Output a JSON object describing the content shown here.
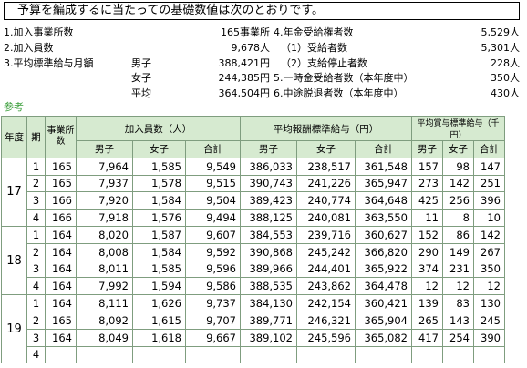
{
  "title": "予算を編成するに当たっての基礎数値は次のとおりです。",
  "summary": {
    "left": [
      {
        "label": "1.加入事業所数",
        "value": "165事業所"
      },
      {
        "label": "2.加入員数",
        "value": "9,678人"
      },
      {
        "label": "3.平均標準給与月額",
        "sub": "男子",
        "value": "388,421円"
      },
      {
        "label": "",
        "sub": "女子",
        "value": "244,385円"
      },
      {
        "label": "",
        "sub": "平均",
        "value": "364,504円"
      },
      {
        "label": "",
        "sub": "",
        "value": ""
      }
    ],
    "right": [
      {
        "label": "4.年金受給権者数",
        "value": "5,529人"
      },
      {
        "label": "（1）受給者数",
        "value": "5,301人"
      },
      {
        "label": "（2）支給停止者数",
        "value": "228人"
      },
      {
        "label": "5.一時金受給者数（本年度中）",
        "value": "350人"
      },
      {
        "label": "6.中途脱退者数（本年度中）",
        "value": "430人"
      }
    ]
  },
  "sankou": "参考",
  "table": {
    "headers": {
      "year": "年度",
      "period": "期",
      "offices": "事業所数",
      "members": "加入員数（人）",
      "salary": "平均報酬標準給与（円）",
      "bonus": "平均賞与標準給与（千円）",
      "male": "男子",
      "female": "女子",
      "total": "合計"
    },
    "groups": [
      {
        "year": "17",
        "rows": [
          [
            "1",
            "165",
            "7,964",
            "1,585",
            "9,549",
            "386,033",
            "238,517",
            "361,548",
            "157",
            "98",
            "147"
          ],
          [
            "2",
            "165",
            "7,937",
            "1,578",
            "9,515",
            "390,743",
            "241,226",
            "365,947",
            "273",
            "142",
            "251"
          ],
          [
            "3",
            "166",
            "7,920",
            "1,584",
            "9,504",
            "389,423",
            "240,774",
            "364,648",
            "425",
            "256",
            "396"
          ],
          [
            "4",
            "166",
            "7,918",
            "1,576",
            "9,494",
            "388,125",
            "240,081",
            "363,550",
            "11",
            "8",
            "10"
          ]
        ]
      },
      {
        "year": "18",
        "rows": [
          [
            "1",
            "164",
            "8,020",
            "1,587",
            "9,607",
            "384,553",
            "239,716",
            "360,627",
            "152",
            "86",
            "142"
          ],
          [
            "2",
            "164",
            "8,008",
            "1,584",
            "9,592",
            "390,868",
            "245,242",
            "366,820",
            "290",
            "149",
            "267"
          ],
          [
            "3",
            "164",
            "8,011",
            "1,585",
            "9,596",
            "389,966",
            "244,401",
            "365,922",
            "374",
            "231",
            "350"
          ],
          [
            "4",
            "164",
            "7,992",
            "1,594",
            "9,586",
            "388,535",
            "243,862",
            "364,478",
            "12",
            "12",
            "12"
          ]
        ]
      },
      {
        "year": "19",
        "rows": [
          [
            "1",
            "164",
            "8,111",
            "1,626",
            "9,737",
            "384,130",
            "242,154",
            "360,421",
            "139",
            "83",
            "130"
          ],
          [
            "2",
            "165",
            "8,092",
            "1,615",
            "9,707",
            "389,771",
            "246,321",
            "365,904",
            "265",
            "143",
            "245"
          ],
          [
            "3",
            "164",
            "8,049",
            "1,618",
            "9,667",
            "389,102",
            "245,596",
            "365,082",
            "417",
            "254",
            "390"
          ],
          [
            "4",
            "",
            "",
            "",
            "",
            "",
            "",
            "",
            "",
            "",
            ""
          ]
        ]
      }
    ]
  }
}
